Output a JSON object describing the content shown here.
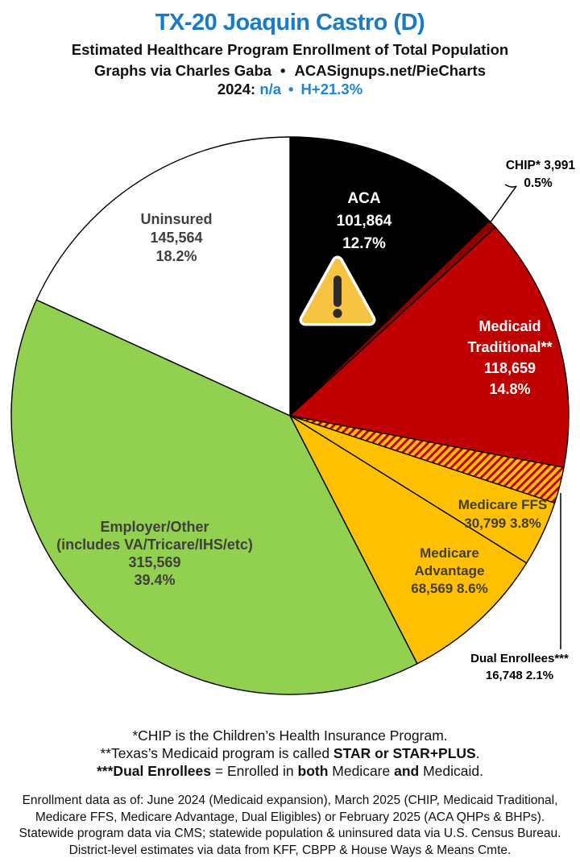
{
  "header": {
    "title": "TX-20 Joaquin Castro (D)",
    "subtitle": "Estimated Healthcare Program Enrollment of Total Population",
    "byline": {
      "left": "Graphs via Charles Gaba",
      "bullet": "•",
      "right": "ACASignups.net/PieCharts"
    },
    "year_line": {
      "label": "2024:",
      "value": "n/a",
      "bullet": "•",
      "margin": "H+21.3%"
    }
  },
  "colors": {
    "title_blue": "#1A7AC4",
    "stat_blue": "#1E86D2",
    "label_gray": "#3F3F3F",
    "aca_black": "#000000",
    "chip_dark_red": "#8F0000",
    "medicaid_red": "#C00000",
    "medicare_amber": "#FFC000",
    "employer_green": "#92D050",
    "uninsured_white": "#FFFFFF",
    "warning_yellow": "#F7C343"
  },
  "chart_data": {
    "type": "pie",
    "title": "Estimated Healthcare Program Enrollment of Total Population",
    "direction": "clockwise",
    "start_angle": "12-oclock",
    "total_pct": 100.1,
    "slices": [
      {
        "id": "aca",
        "name": "ACA",
        "value": 101864,
        "pct": 12.7,
        "color": "#000000",
        "text_color": "#FFFFFF",
        "label_lines": [
          "ACA",
          "101,864",
          "12.7%"
        ]
      },
      {
        "id": "chip",
        "name": "CHIP",
        "value": 3991,
        "pct": 0.5,
        "color": "#8F0000",
        "text_color": "#000000",
        "callout_lines": [
          "CHIP* 3,991",
          "0.5%"
        ]
      },
      {
        "id": "medicaid-traditional",
        "name": "Medicaid Traditional",
        "value": 118659,
        "pct": 14.8,
        "color": "#C00000",
        "text_color": "#FFFFFF",
        "label_lines": [
          "Medicaid",
          "Traditional**",
          "118,659",
          "14.8%"
        ]
      },
      {
        "id": "dual-enrollees",
        "name": "Dual Enrollees",
        "value": 16748,
        "pct": 2.1,
        "color": "hatch",
        "text_color": "#000000",
        "callout_lines": [
          "Dual Enrollees***",
          "16,748 2.1%"
        ]
      },
      {
        "id": "medicare-ffs",
        "name": "Medicare FFS",
        "value": 30799,
        "pct": 3.8,
        "color": "#FFC000",
        "text_color": "#3F3F3F",
        "label_lines": [
          "Medicare FFS",
          "30,799 3.8%"
        ]
      },
      {
        "id": "medicare-advantage",
        "name": "Medicare Advantage",
        "value": 68569,
        "pct": 8.6,
        "color": "#FFC000",
        "text_color": "#3F3F3F",
        "label_lines": [
          "Medicare",
          "Advantage",
          "68,569 8.6%"
        ]
      },
      {
        "id": "employer-other",
        "name": "Employer/Other",
        "value": 315569,
        "pct": 39.4,
        "color": "#92D050",
        "text_color": "#3F3F3F",
        "label_lines": [
          "Employer/Other",
          "(includes VA/Tricare/IHS/etc)",
          "315,569",
          "39.4%"
        ]
      },
      {
        "id": "uninsured",
        "name": "Uninsured",
        "value": 145564,
        "pct": 18.2,
        "color": "#FFFFFF",
        "text_color": "#3F3F3F",
        "label_lines": [
          "Uninsured",
          "145,564",
          "18.2%"
        ]
      }
    ],
    "hatch": {
      "background": "#FFC000",
      "stripe": "#C00000"
    },
    "warning_icon_on_slice": "aca"
  },
  "footnotes": [
    {
      "runs": [
        {
          "t": "*CHIP is the Children’s Health Insurance Program.",
          "b": false
        }
      ]
    },
    {
      "runs": [
        {
          "t": "**Texas’s Medicaid program is called ",
          "b": false
        },
        {
          "t": "STAR or STAR+PLUS",
          "b": true
        },
        {
          "t": ".",
          "b": false
        }
      ]
    },
    {
      "runs": [
        {
          "t": "***Dual Enrollees",
          "b": true
        },
        {
          "t": " = Enrolled in ",
          "b": false
        },
        {
          "t": "both",
          "b": true
        },
        {
          "t": " Medicare ",
          "b": false
        },
        {
          "t": "and",
          "b": true
        },
        {
          "t": " Medicaid.",
          "b": false
        }
      ]
    }
  ],
  "source_lines": [
    "Enrollment data as of: June 2024 (Medicaid expansion), March 2025 (CHIP, Medicaid Traditional,",
    "Medicare FFS, Medicare Advantage, Dual Eligibles) or February 2025 (ACA QHPs & BHPs).",
    "Statewide program data via CMS; statewide population & uninsured data via U.S. Census Bureau.",
    "District-level estimates via data from KFF, CBPP & House Ways & Means Cmte."
  ]
}
